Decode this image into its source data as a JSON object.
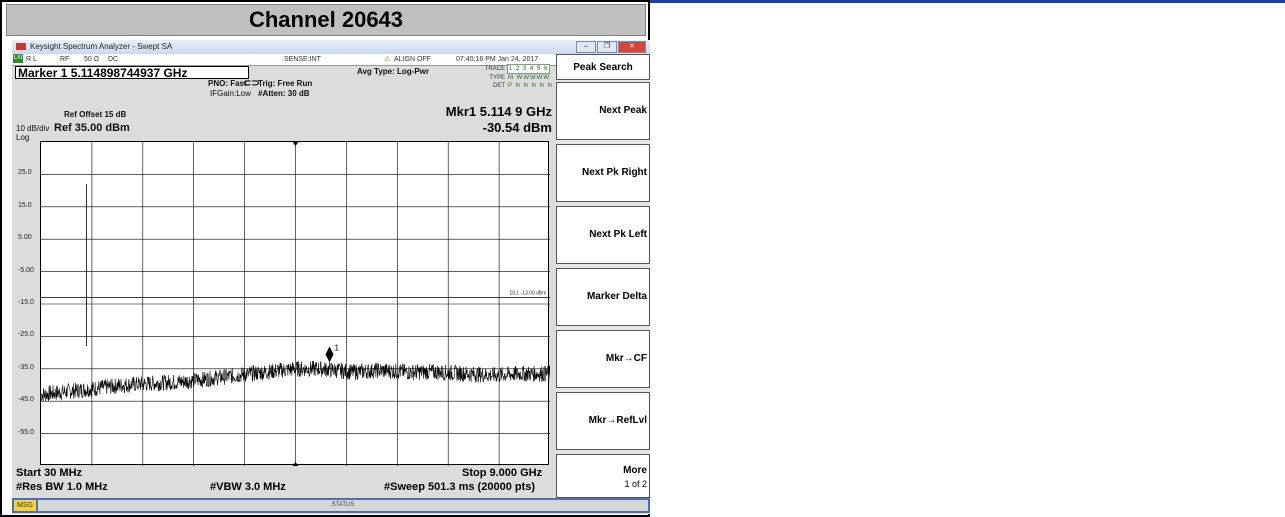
{
  "page_title": "Channel 20643",
  "window": {
    "title": "Keysight Spectrum Analyzer - Swept SA",
    "buttons": [
      "–",
      "❐",
      "✕"
    ]
  },
  "status_row": {
    "badge": "LXI",
    "rl": "R L",
    "rf": "RF",
    "impedance": "50 Ω",
    "coupling": "DC",
    "sense": "SENSE:INT",
    "align": "ALIGN OFF",
    "datetime": "07:40:16 PM Jan 24, 2017"
  },
  "marker_header": "Marker 1 5.114898744937 GHz",
  "settings": {
    "pno": "PNO: Fast",
    "ifgain": "IFGain:Low",
    "trig": "Trig: Free Run",
    "atten": "#Atten: 30 dB",
    "avg_type": "Avg Type: Log-Pwr",
    "ref_offset": "Ref Offset 15 dB",
    "scale": "10 dB/div",
    "ref_level": "Ref 35.00 dBm",
    "log": "Log"
  },
  "trace": {
    "trace_label": "TRACE",
    "trace_val": "1 2 3 4 5 6",
    "type_label": "TYPE",
    "type_val": "M WWWWW",
    "det_label": "DET",
    "det_val": "P N N N N N"
  },
  "marker_readout": {
    "freq": "Mkr1 5.114 9 GHz",
    "level": "-30.54 dBm",
    "marker_label": "1"
  },
  "display_line": "DL1 -13.00 dBm",
  "softkeys": {
    "title": "Peak Search",
    "keys": [
      "Next Peak",
      "Next Pk Right",
      "Next Pk Left",
      "Marker Delta",
      "Mkr→CF",
      "Mkr→RefLvl"
    ],
    "more": "More",
    "page": "1 of 2"
  },
  "bottom": {
    "start": "Start 30 MHz",
    "stop": "Stop 9.000 GHz",
    "rbw": "#Res BW 1.0 MHz",
    "vbw": "#VBW 3.0 MHz",
    "sweep": "#Sweep  501.3 ms (20000 pts)"
  },
  "msg_label": "MSG",
  "status_label": "STATUS",
  "colors": {
    "trace": "#000000",
    "grid": "#000000",
    "softkey_bg": "#ffffff",
    "msg_bar": "#4b6fb5"
  },
  "chart_data": {
    "type": "line",
    "x_unit": "GHz",
    "y_unit": "dBm",
    "xlim": [
      0.03,
      9.0
    ],
    "ylim": [
      -65,
      35
    ],
    "y_ticks": [
      "25.0",
      "15.0",
      "5.00",
      "-5.00",
      "-15.0",
      "-25.0",
      "-35.0",
      "-45.0",
      "-55.0"
    ],
    "y_tick_values": [
      25,
      15,
      5,
      -5,
      -15,
      -25,
      -35,
      -45,
      -55
    ],
    "display_line_value": -13.0,
    "marker": {
      "x": 5.1149,
      "y": -30.54
    },
    "spurs": [
      {
        "x": 0.83,
        "y": 22
      },
      {
        "x": 0.83,
        "y": -28
      }
    ],
    "trace": {
      "x": [
        0.03,
        0.5,
        1.0,
        1.5,
        2.0,
        2.5,
        3.0,
        3.5,
        4.0,
        4.5,
        5.0,
        5.5,
        6.0,
        6.5,
        7.0,
        7.5,
        8.0,
        8.5,
        9.0
      ],
      "y": [
        -43,
        -42,
        -41,
        -40,
        -39.5,
        -39,
        -38,
        -37,
        -36,
        -35,
        -35,
        -36,
        -35.5,
        -36,
        -36,
        -36.5,
        -37,
        -36.5,
        -36.5
      ]
    }
  }
}
